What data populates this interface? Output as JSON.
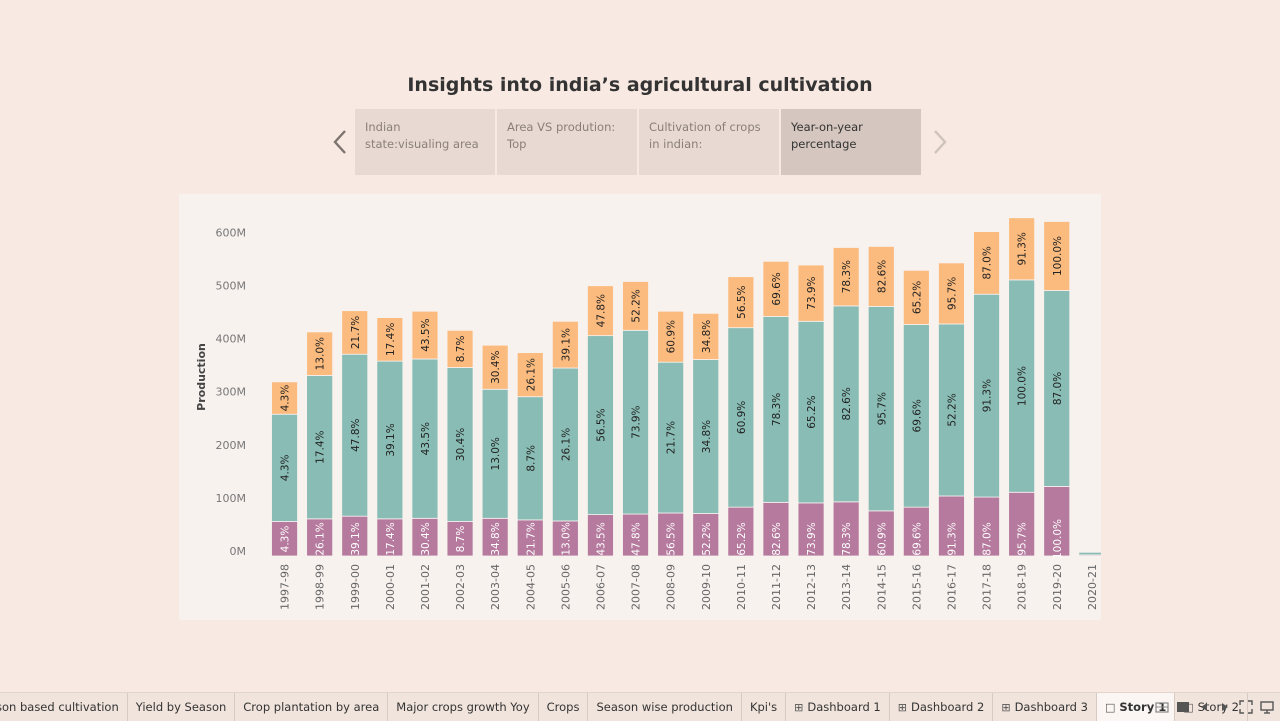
{
  "story": {
    "title": "Insights into india’s agricultural cultivation",
    "points": [
      {
        "label": "Indian state:visualing area",
        "active": false
      },
      {
        "label": "Area VS prodution: Top",
        "active": false
      },
      {
        "label": "Cultivation of crops in indian:",
        "active": false
      },
      {
        "label": "Year-on-year percentage",
        "active": true
      }
    ]
  },
  "colors": {
    "bottom": "#b57a9e",
    "middle": "#88bcb4",
    "top": "#fbbb7e"
  },
  "chart_data": {
    "type": "bar",
    "stacked": true,
    "ylabel": "Production",
    "ylim": [
      0,
      640000000
    ],
    "yticks": [
      0,
      100000000,
      200000000,
      300000000,
      400000000,
      500000000,
      600000000
    ],
    "ytick_labels": [
      "0M",
      "100M",
      "200M",
      "300M",
      "400M",
      "500M",
      "600M"
    ],
    "categories": [
      "1997-98",
      "1998-99",
      "1999-00",
      "2000-01",
      "2001-02",
      "2002-03",
      "2003-04",
      "2004-05",
      "2005-06",
      "2006-07",
      "2007-08",
      "2008-09",
      "2009-10",
      "2010-11",
      "2011-12",
      "2012-13",
      "2013-14",
      "2014-15",
      "2015-16",
      "2016-17",
      "2017-18",
      "2018-19",
      "2019-20",
      "2020-21"
    ],
    "series": [
      {
        "key": "bottom",
        "values": [
          65,
          70,
          75,
          70,
          71,
          65,
          71,
          68,
          66,
          78,
          79,
          81,
          80,
          92,
          101,
          100,
          102,
          85,
          92,
          113,
          111,
          120,
          131,
          2
        ],
        "labels": [
          "4.3%",
          "26.1%",
          "39.1%",
          "17.4%",
          "30.4%",
          "8.7%",
          "34.8%",
          "21.7%",
          "13.0%",
          "43.5%",
          "47.8%",
          "56.5%",
          "52.2%",
          "65.2%",
          "82.6%",
          "73.9%",
          "78.3%",
          "60.9%",
          "69.6%",
          "91.3%",
          "87.0%",
          "95.7%",
          "100.0%",
          ""
        ]
      },
      {
        "key": "middle",
        "values": [
          202,
          270,
          305,
          297,
          300,
          290,
          243,
          232,
          288,
          337,
          346,
          284,
          290,
          338,
          350,
          342,
          369,
          385,
          344,
          324,
          382,
          400,
          369,
          5
        ],
        "labels": [
          "4.3%",
          "17.4%",
          "47.8%",
          "39.1%",
          "43.5%",
          "30.4%",
          "13.0%",
          "8.7%",
          "26.1%",
          "56.5%",
          "73.9%",
          "21.7%",
          "34.8%",
          "60.9%",
          "78.3%",
          "65.2%",
          "82.6%",
          "95.7%",
          "69.6%",
          "52.2%",
          "91.3%",
          "100.0%",
          "87.0%",
          ""
        ]
      },
      {
        "key": "top",
        "values": [
          61,
          82,
          82,
          82,
          90,
          70,
          83,
          83,
          88,
          94,
          92,
          96,
          87,
          96,
          104,
          106,
          110,
          113,
          102,
          115,
          118,
          117,
          130,
          0
        ],
        "labels": [
          "4.3%",
          "13.0%",
          "21.7%",
          "17.4%",
          "43.5%",
          "8.7%",
          "30.4%",
          "26.1%",
          "39.1%",
          "47.8%",
          "52.2%",
          "60.9%",
          "34.8%",
          "56.5%",
          "69.6%",
          "73.9%",
          "78.3%",
          "82.6%",
          "65.2%",
          "95.7%",
          "87.0%",
          "91.3%",
          "100.0%",
          ""
        ]
      }
    ],
    "value_unit": "M",
    "grid": false,
    "legend": "none"
  },
  "tabs": [
    {
      "label": "son based cultivation",
      "icon": "",
      "active": false
    },
    {
      "label": "Yield by Season",
      "icon": "",
      "active": false
    },
    {
      "label": "Crop plantation by area",
      "icon": "",
      "active": false
    },
    {
      "label": "Major crops growth Yoy",
      "icon": "",
      "active": false
    },
    {
      "label": "Crops",
      "icon": "",
      "active": false
    },
    {
      "label": "Season wise production",
      "icon": "",
      "active": false
    },
    {
      "label": "Kpi's",
      "icon": "",
      "active": false
    },
    {
      "label": "Dashboard 1",
      "icon": "dashboard-icon",
      "active": false
    },
    {
      "label": "Dashboard 2",
      "icon": "dashboard-icon",
      "active": false
    },
    {
      "label": "Dashboard 3",
      "icon": "dashboard-icon",
      "active": false
    },
    {
      "label": "Story 1",
      "icon": "story-icon",
      "active": true
    },
    {
      "label": "Story 2",
      "icon": "story-icon",
      "active": false
    }
  ],
  "controls": [
    "show-sheets-icon",
    "filmstrip-icon",
    "prev-sheet-icon",
    "next-sheet-icon",
    "fullscreen-icon",
    "presentation-icon"
  ]
}
